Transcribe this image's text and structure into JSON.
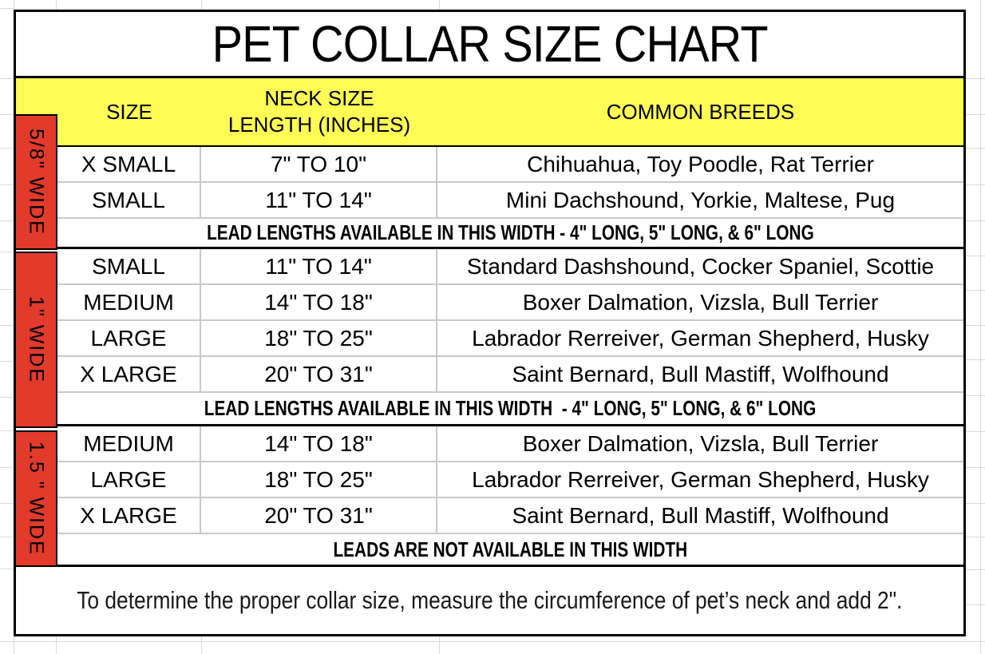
{
  "title": "PET COLLAR SIZE CHART",
  "header": {
    "size": "SIZE",
    "neck_size_line1": "NECK SIZE",
    "neck_size_line2": "LENGTH (INCHES)",
    "breeds": "COMMON BREEDS"
  },
  "sections": [
    {
      "width_label": "5/8\" WIDE",
      "rows": [
        {
          "size": "X SMALL",
          "neck": "7\" TO 10\"",
          "breeds": "Chihuahua, Toy Poodle, Rat Terrier"
        },
        {
          "size": "SMALL",
          "neck": "11\" TO 14\"",
          "breeds": "Mini Dachshound, Yorkie, Maltese, Pug"
        }
      ],
      "lead_note": "LEAD LENGTHS AVAILABLE IN THIS WIDTH - 4\" LONG, 5\" LONG, & 6\" LONG"
    },
    {
      "width_label": "1\" WIDE",
      "rows": [
        {
          "size": "SMALL",
          "neck": "11\" TO 14\"",
          "breeds": "Standard Dashshound, Cocker Spaniel, Scottie"
        },
        {
          "size": "MEDIUM",
          "neck": "14\" TO 18\"",
          "breeds": "Boxer Dalmation, Vizsla, Bull Terrier"
        },
        {
          "size": "LARGE",
          "neck": "18\" TO 25\"",
          "breeds": "Labrador Rerreiver, German Shepherd, Husky"
        },
        {
          "size": "X LARGE",
          "neck": "20\" TO 31\"",
          "breeds": "Saint Bernard, Bull Mastiff, Wolfhound"
        }
      ],
      "lead_note": "LEAD LENGTHS AVAILABLE IN THIS WIDTH  - 4\" LONG, 5\" LONG, & 6\" LONG"
    },
    {
      "width_label": "1.5 \" WIDE",
      "rows": [
        {
          "size": "MEDIUM",
          "neck": "14\" TO 18\"",
          "breeds": "Boxer Dalmation, Vizsla, Bull Terrier"
        },
        {
          "size": "LARGE",
          "neck": "18\" TO 25\"",
          "breeds": "Labrador Rerreiver, German Shepherd, Husky"
        },
        {
          "size": "X LARGE",
          "neck": "20\" TO 31\"",
          "breeds": "Saint Bernard, Bull Mastiff, Wolfhound"
        }
      ],
      "lead_note": "LEADS ARE NOT AVAILABLE IN THIS WIDTH"
    }
  ],
  "footer_note": "To determine the proper collar size, measure the circumference of pet’s neck and add 2\".",
  "colors": {
    "header_yellow": "#fcfc55",
    "width_label_red": "#e23a2b",
    "grid_gray": "#c8c8c8",
    "margin_grid_gray": "#d9d9d9"
  }
}
